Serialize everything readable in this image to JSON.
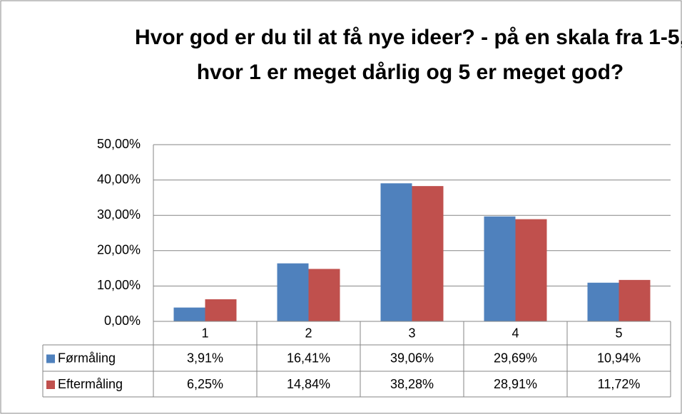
{
  "chart_data": {
    "type": "bar",
    "title": "Hvor god er du til at få nye ideer? - på en skala fra 1-5, hvor 1 er meget dårlig og 5 er meget god?",
    "categories": [
      "1",
      "2",
      "3",
      "4",
      "5"
    ],
    "series": [
      {
        "name": "Førmåling",
        "color": "#4f81bd",
        "values": [
          3.91,
          16.41,
          39.06,
          29.69,
          10.94
        ],
        "value_labels": [
          "3,91%",
          "16,41%",
          "39,06%",
          "29,69%",
          "10,94%"
        ]
      },
      {
        "name": "Eftermåling",
        "color": "#c0504d",
        "values": [
          6.25,
          14.84,
          38.28,
          28.91,
          11.72
        ],
        "value_labels": [
          "6,25%",
          "14,84%",
          "38,28%",
          "28,91%",
          "11,72%"
        ]
      }
    ],
    "ylim": [
      0,
      50
    ],
    "yticks": [
      {
        "value": 0,
        "label": "0,00%"
      },
      {
        "value": 10,
        "label": "10,00%"
      },
      {
        "value": 20,
        "label": "20,00%"
      },
      {
        "value": 30,
        "label": "30,00%"
      },
      {
        "value": 40,
        "label": "40,00%"
      },
      {
        "value": 50,
        "label": "50,00%"
      }
    ],
    "grid": true
  }
}
